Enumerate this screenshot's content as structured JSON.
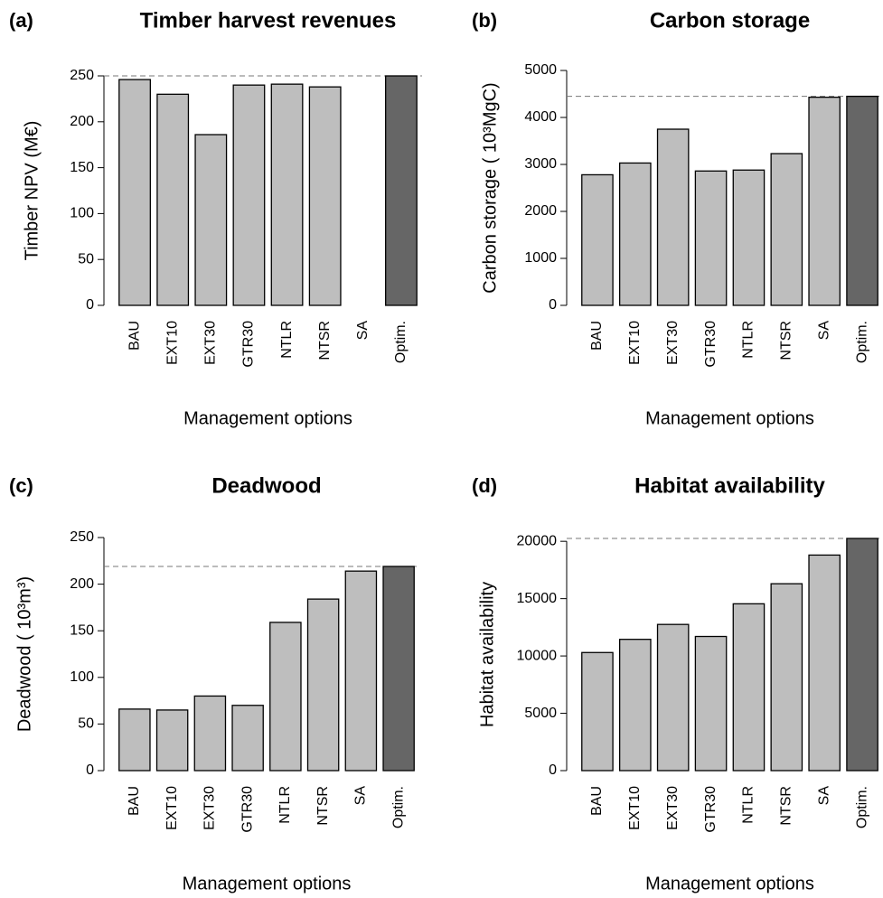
{
  "chart_data": [
    {
      "type": "bar",
      "panel_label": "(a)",
      "title": "Timber harvest revenues",
      "xlabel": "Management options",
      "ylabel": "Timber NPV (M€)",
      "categories": [
        "BAU",
        "EXT10",
        "EXT30",
        "GTR30",
        "NTLR",
        "NTSR",
        "SA",
        "Optim."
      ],
      "values": [
        246,
        230,
        186,
        240,
        241,
        238,
        0,
        250
      ],
      "colors": [
        "#bebebe",
        "#bebebe",
        "#bebebe",
        "#bebebe",
        "#bebebe",
        "#bebebe",
        "#bebebe",
        "#666666"
      ],
      "ylim": [
        0,
        250
      ],
      "yticks": [
        0,
        50,
        100,
        150,
        200,
        250
      ]
    },
    {
      "type": "bar",
      "panel_label": "(b)",
      "title": "Carbon storage",
      "xlabel": "Management options",
      "ylabel": "Carbon storage ( 10³MgC)",
      "categories": [
        "BAU",
        "EXT10",
        "EXT30",
        "GTR30",
        "NTLR",
        "NTSR",
        "SA",
        "Optim."
      ],
      "values": [
        2780,
        3030,
        3750,
        2860,
        2880,
        3230,
        4430,
        4450
      ],
      "colors": [
        "#bebebe",
        "#bebebe",
        "#bebebe",
        "#bebebe",
        "#bebebe",
        "#bebebe",
        "#bebebe",
        "#666666"
      ],
      "ylim": [
        0,
        5000
      ],
      "yticks": [
        0,
        1000,
        2000,
        3000,
        4000,
        5000
      ]
    },
    {
      "type": "bar",
      "panel_label": "(c)",
      "title": "Deadwood",
      "xlabel": "Management options",
      "ylabel": "Deadwood ( 10³m³)",
      "categories": [
        "BAU",
        "EXT10",
        "EXT30",
        "GTR30",
        "NTLR",
        "NTSR",
        "SA",
        "Optim."
      ],
      "values": [
        66,
        65,
        80,
        70,
        159,
        184,
        214,
        219
      ],
      "colors": [
        "#bebebe",
        "#bebebe",
        "#bebebe",
        "#bebebe",
        "#bebebe",
        "#bebebe",
        "#bebebe",
        "#666666"
      ],
      "ylim": [
        0,
        250
      ],
      "yticks": [
        0,
        50,
        100,
        150,
        200,
        250
      ]
    },
    {
      "type": "bar",
      "panel_label": "(d)",
      "title": "Habitat availability",
      "xlabel": "Management options",
      "ylabel": "Habitat availability",
      "categories": [
        "BAU",
        "EXT10",
        "EXT30",
        "GTR30",
        "NTLR",
        "NTSR",
        "SA",
        "Optim."
      ],
      "values": [
        10300,
        11450,
        12750,
        11700,
        14550,
        16300,
        18800,
        20250
      ],
      "colors": [
        "#bebebe",
        "#bebebe",
        "#bebebe",
        "#bebebe",
        "#bebebe",
        "#bebebe",
        "#bebebe",
        "#666666"
      ],
      "ylim": [
        0,
        20250
      ],
      "yticks": [
        0,
        5000,
        10000,
        15000,
        20000
      ]
    }
  ]
}
